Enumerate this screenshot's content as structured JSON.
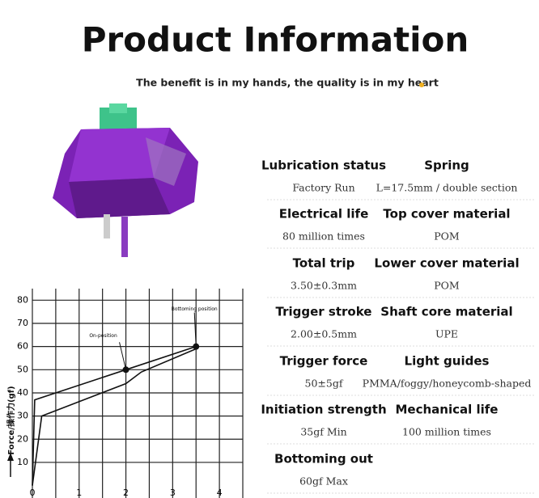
{
  "header": {
    "title": "Product Information",
    "subtitle": "The benefit is in my hands, the quality is in my heart"
  },
  "specs": [
    {
      "label": "Lubrication status",
      "value": "Factory Run"
    },
    {
      "label": "Spring",
      "value": "L=17.5mm / double section"
    },
    {
      "label": "Electrical life",
      "value": "80 million times"
    },
    {
      "label": "Top cover material",
      "value": "POM"
    },
    {
      "label": "Total trip",
      "value": "3.50±0.3mm"
    },
    {
      "label": "Lower cover material",
      "value": "POM"
    },
    {
      "label": "Trigger stroke",
      "value": "2.00±0.5mm"
    },
    {
      "label": "Shaft core material",
      "value": "UPE"
    },
    {
      "label": "Trigger force",
      "value": "50±5gf"
    },
    {
      "label": "Light guides",
      "value": "PMMA/foggy/honeycomb-shaped"
    },
    {
      "label": "Initiation strength",
      "value": "35gf Min"
    },
    {
      "label": "Mechanical life",
      "value": "100 million times"
    },
    {
      "label": "Bottoming out",
      "value": "60gf Max"
    }
  ],
  "chart_data": {
    "type": "line",
    "y_label": "Force/操作力(gf)",
    "xlim": [
      0,
      4.5
    ],
    "ylim": [
      0,
      85
    ],
    "xticks": [
      0,
      1,
      2,
      3,
      4
    ],
    "x_minor_ticks": [
      0.5,
      1.5,
      2.5,
      3.5,
      4.5
    ],
    "yticks": [
      10,
      20,
      30,
      40,
      50,
      60,
      70,
      80
    ],
    "grid": true,
    "series": [
      {
        "color": "#111111",
        "x": [
          0,
          0.05,
          2,
          3.5
        ],
        "values": [
          0,
          37,
          50,
          60
        ]
      },
      {
        "color": "#111111",
        "x": [
          0,
          0.2,
          2,
          2.33,
          3.5
        ],
        "values": [
          0,
          30,
          44,
          49,
          59
        ]
      }
    ],
    "annotations": [
      {
        "text": "On-position",
        "x": 2,
        "y": 50
      },
      {
        "text": "Bottoming position",
        "x": 3.5,
        "y": 60
      }
    ]
  }
}
